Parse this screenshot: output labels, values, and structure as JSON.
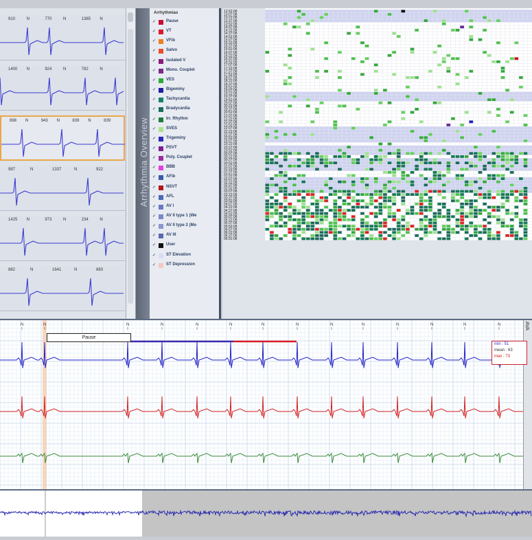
{
  "thumbnails": [
    {
      "labels": [
        "910",
        "N",
        "770",
        "N",
        "1385",
        "N"
      ]
    },
    {
      "labels": [
        "1400",
        "N",
        "924",
        "N",
        "782",
        "N"
      ]
    },
    {
      "labels": [
        "898",
        "N",
        "943",
        "N",
        "839",
        "N",
        "839"
      ]
    },
    {
      "labels": [
        "987",
        "N",
        "1337",
        "N",
        "922"
      ]
    },
    {
      "labels": [
        "1425",
        "N",
        "973",
        "N",
        "234",
        "N"
      ]
    },
    {
      "labels": [
        "882",
        "N",
        "1641",
        "N",
        "883"
      ]
    }
  ],
  "overview": {
    "title": "Arrhythmia Overview",
    "legend_header": "Arrhythmias",
    "legend": [
      {
        "label": "Pause",
        "color": "#c8102e"
      },
      {
        "label": "VT",
        "color": "#d81b2a"
      },
      {
        "label": "VFib",
        "color": "#f07f22"
      },
      {
        "label": "Salvo",
        "color": "#e8502a"
      },
      {
        "label": "Isolated V",
        "color": "#8b1a7e"
      },
      {
        "label": "Mono. Couplet",
        "color": "#7a2a8a"
      },
      {
        "label": "VES",
        "color": "#2faa3a"
      },
      {
        "label": "Bigeminy",
        "color": "#2020a0"
      },
      {
        "label": "Tachycardia",
        "color": "#16826a"
      },
      {
        "label": "Bradycardia",
        "color": "#1a6e5e"
      },
      {
        "label": "Irr. Rhythm",
        "color": "#1f7a3c"
      },
      {
        "label": "SVES",
        "color": "#a8e28a"
      },
      {
        "label": "Trigeminy",
        "color": "#2a2ab8"
      },
      {
        "label": "PSVT",
        "color": "#7d1f93"
      },
      {
        "label": "Poly. Couplet",
        "color": "#9c2aa0"
      },
      {
        "label": "BBB",
        "color": "#e040e0"
      },
      {
        "label": "AFib",
        "color": "#3a5aa8"
      },
      {
        "label": "NSVT",
        "color": "#b01818"
      },
      {
        "label": "AFL",
        "color": "#4a6ab8"
      },
      {
        "label": "AV I",
        "color": "#6a7ac0"
      },
      {
        "label": "AV II type 1 (We",
        "color": "#7a88c8"
      },
      {
        "label": "AV II type 2 (Mo",
        "color": "#8a96cc"
      },
      {
        "label": "AV III",
        "color": "#5a68b0"
      },
      {
        "label": "User",
        "color": "#111111"
      },
      {
        "label": "ST Elevation",
        "color": "#d8dcf4"
      },
      {
        "label": "ST Depression",
        "color": "#f4c8c0"
      }
    ],
    "times": [
      "12:52:08",
      "13:07:08",
      "13:22:08",
      "13:37:08",
      "13:52:08",
      "14:07:08",
      "14:22:08",
      "14:37:08",
      "14:52:08",
      "15:07:08",
      "15:22:08",
      "15:37:08",
      "15:52:08",
      "16:07:08",
      "16:22:08",
      "16:37:08",
      "16:52:08",
      "17:07:08",
      "17:22:08",
      "17:37:08",
      "17:52:08",
      "18:07:08",
      "18:22:08",
      "18:37:08",
      "18:52:08",
      "19:07:08",
      "19:22:08",
      "19:37:08",
      "19:52:08",
      "20:07:08",
      "20:22:08",
      "20:37:08",
      "20:52:08",
      "21:07:08",
      "21:22:08",
      "21:37:08",
      "21:52:08",
      "22:07:08",
      "22:22:08",
      "22:37:08",
      "22:52:08",
      "23:07:08",
      "23:22:08",
      "23:37:08",
      "23:52:08",
      "00:07:08",
      "00:22:08",
      "00:37:08",
      "00:52:08",
      "01:07:08",
      "01:22:08",
      "01:37:08",
      "01:52:08",
      "02:07:08",
      "02:22:08",
      "02:37:08",
      "02:52:08",
      "03:07:08",
      "03:22:08",
      "03:37:08",
      "03:52:08",
      "04:07:08",
      "04:22:08",
      "04:37:08",
      "04:52:08",
      "05:07:08",
      "05:22:08",
      "05:37:08",
      "05:52:08",
      "06:07:08",
      "06:22:08",
      "06:37:08",
      "06:52:08"
    ]
  },
  "strip": {
    "event_label": "Pause",
    "side_label": "AVA",
    "stats": [
      {
        "label": "min : 51",
        "color": "#2a2ad0"
      },
      {
        "label": "mean : 63",
        "color": "#333333"
      },
      {
        "label": "max : 73",
        "color": "#d01818"
      }
    ],
    "beat_marker": "N"
  }
}
